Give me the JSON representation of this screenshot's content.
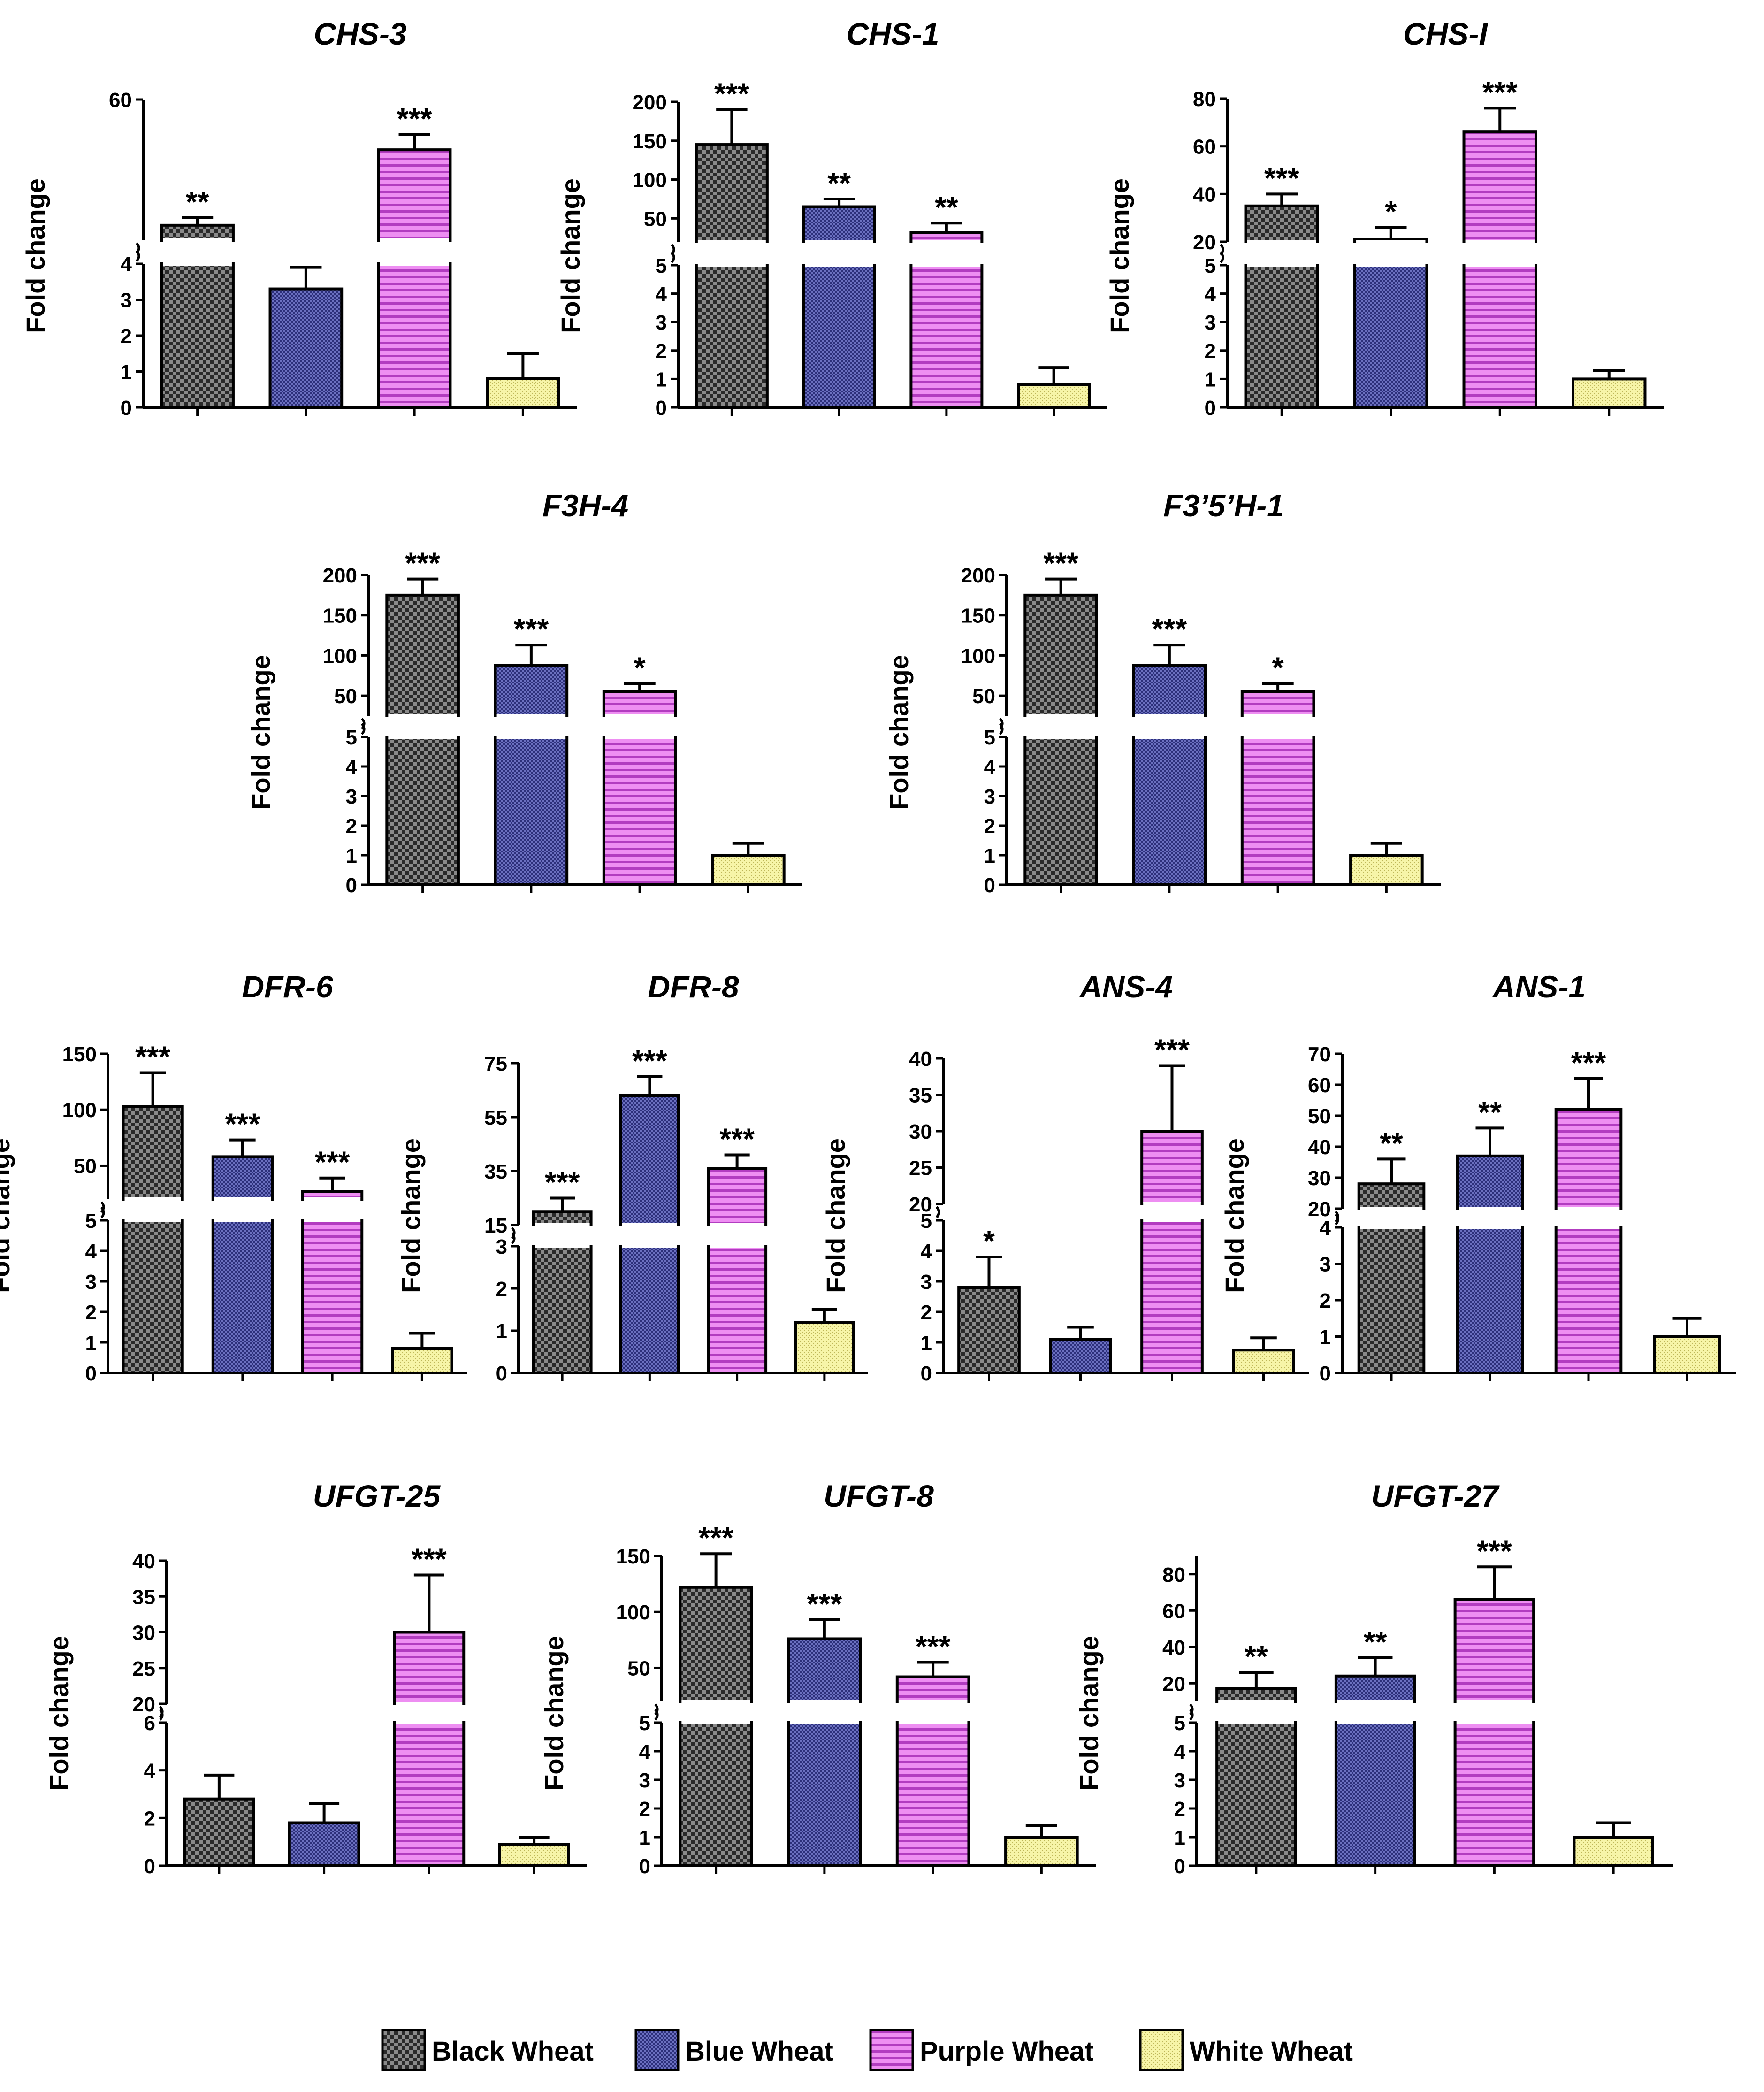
{
  "chart_data": [
    {
      "type": "bar",
      "title": "CHS-3",
      "ylabel": "Fold change",
      "categories": [
        "Black Wheat",
        "Blue Wheat",
        "Purple Wheat",
        "White Wheat"
      ],
      "values": [
        10,
        3.3,
        40,
        0.8
      ],
      "errors": [
        3,
        0.6,
        6,
        0.7
      ],
      "significance": [
        "**",
        "",
        "***",
        ""
      ],
      "lower_axis": {
        "range": [
          0,
          4
        ],
        "ticks": [
          "0",
          "1",
          "2",
          "3",
          "4"
        ]
      },
      "upper_axis": {
        "range": [
          4,
          60
        ],
        "ticks": [
          "60"
        ]
      }
    },
    {
      "type": "bar",
      "title": "CHS-1",
      "ylabel": "Fold change",
      "categories": [
        "Black Wheat",
        "Blue Wheat",
        "Purple Wheat",
        "White Wheat"
      ],
      "values": [
        145,
        65,
        32,
        0.8
      ],
      "errors": [
        45,
        10,
        12,
        0.6
      ],
      "significance": [
        "***",
        "**",
        "**",
        ""
      ],
      "lower_axis": {
        "range": [
          0,
          5
        ],
        "ticks": [
          "0",
          "1",
          "2",
          "3",
          "4",
          "5"
        ]
      },
      "upper_axis": {
        "range": [
          20,
          200
        ],
        "ticks": [
          "50",
          "100",
          "150",
          "200"
        ]
      }
    },
    {
      "type": "bar",
      "title": "CHS-I",
      "ylabel": "Fold change",
      "categories": [
        "Black Wheat",
        "Blue Wheat",
        "Purple Wheat",
        "White Wheat"
      ],
      "values": [
        35,
        21,
        66,
        1
      ],
      "errors": [
        5,
        5,
        10,
        0.3
      ],
      "significance": [
        "***",
        "*",
        "***",
        ""
      ],
      "lower_axis": {
        "range": [
          0,
          5
        ],
        "ticks": [
          "0",
          "1",
          "2",
          "3",
          "4",
          "5"
        ]
      },
      "upper_axis": {
        "range": [
          20,
          80
        ],
        "ticks": [
          "20",
          "40",
          "60",
          "80"
        ]
      }
    },
    {
      "type": "bar",
      "title": "F3H-4",
      "ylabel": "Fold change",
      "categories": [
        "Black Wheat",
        "Blue Wheat",
        "Purple Wheat",
        "White Wheat"
      ],
      "values": [
        175,
        88,
        55,
        1
      ],
      "errors": [
        20,
        25,
        10,
        0.4
      ],
      "significance": [
        "***",
        "***",
        "*",
        ""
      ],
      "lower_axis": {
        "range": [
          0,
          5
        ],
        "ticks": [
          "0",
          "1",
          "2",
          "3",
          "4",
          "5"
        ]
      },
      "upper_axis": {
        "range": [
          25,
          200
        ],
        "ticks": [
          "50",
          "100",
          "150",
          "200"
        ]
      }
    },
    {
      "type": "bar",
      "title": "F3’5’H-1",
      "ylabel": "Fold change",
      "categories": [
        "Black Wheat",
        "Blue Wheat",
        "Purple Wheat",
        "White Wheat"
      ],
      "values": [
        175,
        88,
        55,
        1
      ],
      "errors": [
        20,
        25,
        10,
        0.4
      ],
      "significance": [
        "***",
        "***",
        "*",
        ""
      ],
      "lower_axis": {
        "range": [
          0,
          5
        ],
        "ticks": [
          "0",
          "1",
          "2",
          "3",
          "4",
          "5"
        ]
      },
      "upper_axis": {
        "range": [
          25,
          200
        ],
        "ticks": [
          "50",
          "100",
          "150",
          "200"
        ]
      }
    },
    {
      "type": "bar",
      "title": "DFR-6",
      "ylabel": "Fold change",
      "categories": [
        "Black Wheat",
        "Blue Wheat",
        "Purple Wheat",
        "White Wheat"
      ],
      "values": [
        103,
        58,
        27,
        0.8
      ],
      "errors": [
        30,
        15,
        12,
        0.5
      ],
      "significance": [
        "***",
        "***",
        "***",
        ""
      ],
      "lower_axis": {
        "range": [
          0,
          5
        ],
        "ticks": [
          "0",
          "1",
          "2",
          "3",
          "4",
          "5"
        ]
      },
      "upper_axis": {
        "range": [
          20,
          150
        ],
        "ticks": [
          "50",
          "100",
          "150"
        ]
      }
    },
    {
      "type": "bar",
      "title": "DFR-8",
      "ylabel": "Fold change",
      "categories": [
        "Black Wheat",
        "Blue Wheat",
        "Purple Wheat",
        "White Wheat"
      ],
      "values": [
        20,
        63,
        36,
        1.2
      ],
      "errors": [
        5,
        7,
        5,
        0.3
      ],
      "significance": [
        "***",
        "***",
        "***",
        ""
      ],
      "lower_axis": {
        "range": [
          0,
          3
        ],
        "ticks": [
          "0",
          "1",
          "2",
          "3"
        ]
      },
      "upper_axis": {
        "range": [
          15,
          75
        ],
        "ticks": [
          "15",
          "35",
          "55",
          "75"
        ]
      }
    },
    {
      "type": "bar",
      "title": "ANS-4",
      "ylabel": "Fold change",
      "categories": [
        "Black Wheat",
        "Blue Wheat",
        "Purple Wheat",
        "White Wheat"
      ],
      "values": [
        2.8,
        1.1,
        30,
        0.75
      ],
      "errors": [
        1,
        0.4,
        9,
        0.4
      ],
      "significance": [
        "*",
        "",
        "***",
        ""
      ],
      "lower_axis": {
        "range": [
          0,
          5
        ],
        "ticks": [
          "0",
          "1",
          "2",
          "3",
          "4",
          "5"
        ]
      },
      "upper_axis": {
        "range": [
          20,
          40
        ],
        "ticks": [
          "20",
          "25",
          "30",
          "35",
          "40"
        ]
      }
    },
    {
      "type": "bar",
      "title": "ANS-1",
      "ylabel": "Fold change",
      "categories": [
        "Black Wheat",
        "Blue Wheat",
        "Purple Wheat",
        "White Wheat"
      ],
      "values": [
        28,
        37,
        52,
        1
      ],
      "errors": [
        8,
        9,
        10,
        0.5
      ],
      "significance": [
        "**",
        "**",
        "***",
        ""
      ],
      "lower_axis": {
        "range": [
          0,
          4
        ],
        "ticks": [
          "0",
          "1",
          "2",
          "3",
          "4"
        ]
      },
      "upper_axis": {
        "range": [
          20,
          70
        ],
        "ticks": [
          "20",
          "30",
          "40",
          "50",
          "60",
          "70"
        ]
      }
    },
    {
      "type": "bar",
      "title": "UFGT-25",
      "ylabel": "Fold change",
      "categories": [
        "Black Wheat",
        "Blue Wheat",
        "Purple Wheat",
        "White Wheat"
      ],
      "values": [
        2.8,
        1.8,
        30,
        0.9
      ],
      "errors": [
        1,
        0.8,
        8,
        0.3
      ],
      "significance": [
        "",
        "",
        "***",
        ""
      ],
      "lower_axis": {
        "range": [
          0,
          6
        ],
        "ticks": [
          "0",
          "2",
          "4",
          "6"
        ]
      },
      "upper_axis": {
        "range": [
          20,
          40
        ],
        "ticks": [
          "20",
          "25",
          "30",
          "35",
          "40"
        ]
      }
    },
    {
      "type": "bar",
      "title": "UFGT-8",
      "ylabel": "Fold change",
      "categories": [
        "Black Wheat",
        "Blue Wheat",
        "Purple Wheat",
        "White Wheat"
      ],
      "values": [
        122,
        76,
        42,
        1
      ],
      "errors": [
        30,
        17,
        13,
        0.4
      ],
      "significance": [
        "***",
        "***",
        "***",
        ""
      ],
      "lower_axis": {
        "range": [
          0,
          5
        ],
        "ticks": [
          "0",
          "1",
          "2",
          "3",
          "4",
          "5"
        ]
      },
      "upper_axis": {
        "range": [
          20,
          150
        ],
        "ticks": [
          "50",
          "100",
          "150"
        ]
      }
    },
    {
      "type": "bar",
      "title": "UFGT-27",
      "ylabel": "Fold change",
      "categories": [
        "Black Wheat",
        "Blue Wheat",
        "Purple Wheat",
        "White Wheat"
      ],
      "values": [
        17,
        24,
        66,
        1
      ],
      "errors": [
        9,
        10,
        18,
        0.5
      ],
      "significance": [
        "**",
        "**",
        "***",
        ""
      ],
      "lower_axis": {
        "range": [
          0,
          5
        ],
        "ticks": [
          "0",
          "1",
          "2",
          "3",
          "4",
          "5"
        ]
      },
      "upper_axis": {
        "range": [
          10,
          90
        ],
        "ticks": [
          "20",
          "40",
          "60",
          "80"
        ]
      }
    }
  ],
  "legend": {
    "items": [
      {
        "label": "Black Wheat",
        "color": "#3a3a3a"
      },
      {
        "label": "Blue Wheat",
        "color": "#4a4ea0"
      },
      {
        "label": "Purple Wheat",
        "color": "#e070e8"
      },
      {
        "label": "White Wheat",
        "color": "#f4f29a"
      }
    ]
  }
}
